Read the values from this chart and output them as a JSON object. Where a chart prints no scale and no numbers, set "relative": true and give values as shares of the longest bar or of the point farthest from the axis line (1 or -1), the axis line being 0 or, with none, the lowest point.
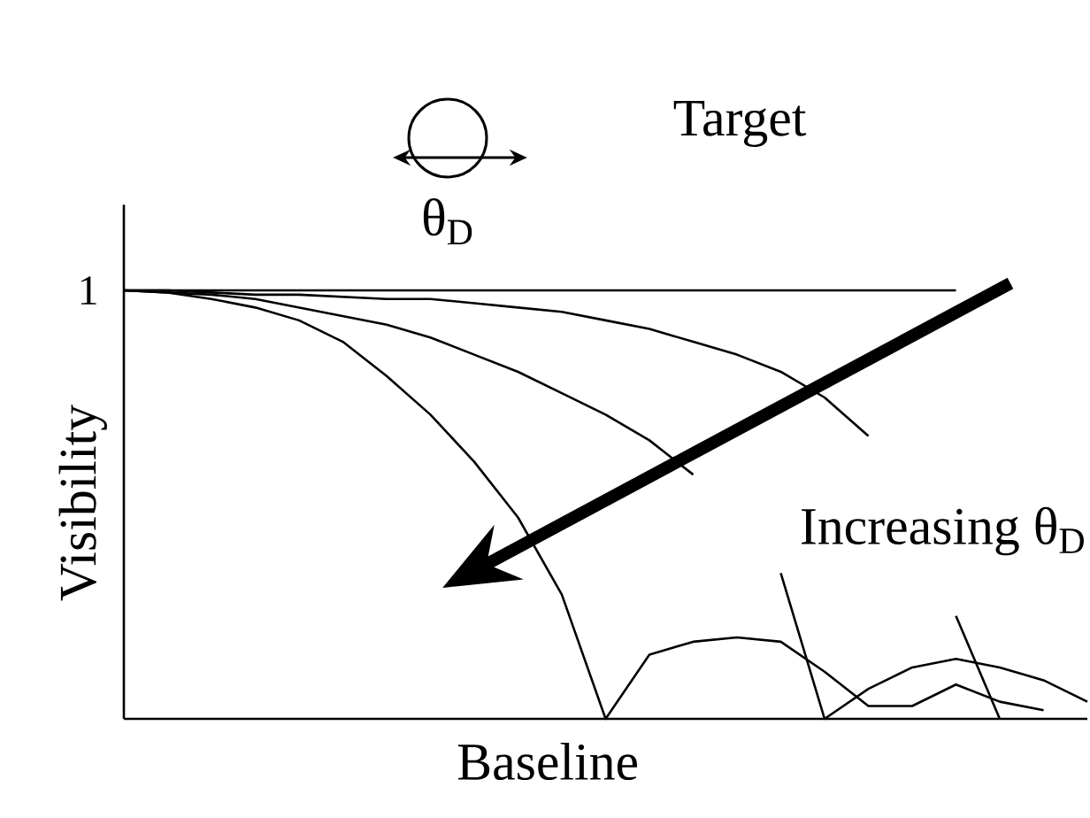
{
  "chart_data": {
    "type": "line",
    "relative": true,
    "xlabel": "Baseline",
    "ylabel": "Visibility",
    "line_style": "solid",
    "categories": [
      null,
      null,
      null,
      null,
      null,
      null,
      null,
      null,
      null,
      null,
      null,
      null,
      null,
      null,
      null,
      null,
      null,
      null,
      null,
      null,
      null,
      null,
      null
    ],
    "annotations": [
      "Target",
      "θ$_{D}$",
      "Increasing θ$_{D}$",
      "1"
    ],
    "series": [
      {
        "color": "#000000",
        "values": [
          1,
          1,
          1,
          1,
          1,
          1,
          1,
          1,
          1,
          1,
          1,
          1,
          1,
          1,
          1,
          1,
          1,
          1,
          1,
          1,
          null,
          null,
          null
        ]
      },
      {
        "color": "#000000",
        "values": [
          1,
          1,
          0.995,
          0.99,
          0.99,
          0.985,
          0.98,
          0.98,
          0.97,
          0.96,
          0.95,
          0.93,
          0.91,
          0.88,
          0.85,
          0.81,
          0.75,
          0.66,
          null,
          0.24,
          0,
          null,
          null
        ]
      },
      {
        "color": "#000000",
        "values": [
          1,
          0.995,
          0.99,
          0.98,
          0.96,
          0.94,
          0.92,
          0.89,
          0.85,
          0.81,
          0.76,
          0.71,
          0.65,
          0.57,
          null,
          0.34,
          0,
          0.07,
          0.12,
          0.14,
          0.12,
          0.09,
          0.04
        ]
      },
      {
        "color": "#000000",
        "values": [
          1,
          0.995,
          0.98,
          0.96,
          0.93,
          0.88,
          0.8,
          0.71,
          0.6,
          0.47,
          0.29,
          0,
          0.15,
          0.18,
          0.19,
          0.18,
          0.11,
          0.03,
          0.03,
          0.08,
          0.04,
          0.02,
          null
        ]
      }
    ]
  }
}
